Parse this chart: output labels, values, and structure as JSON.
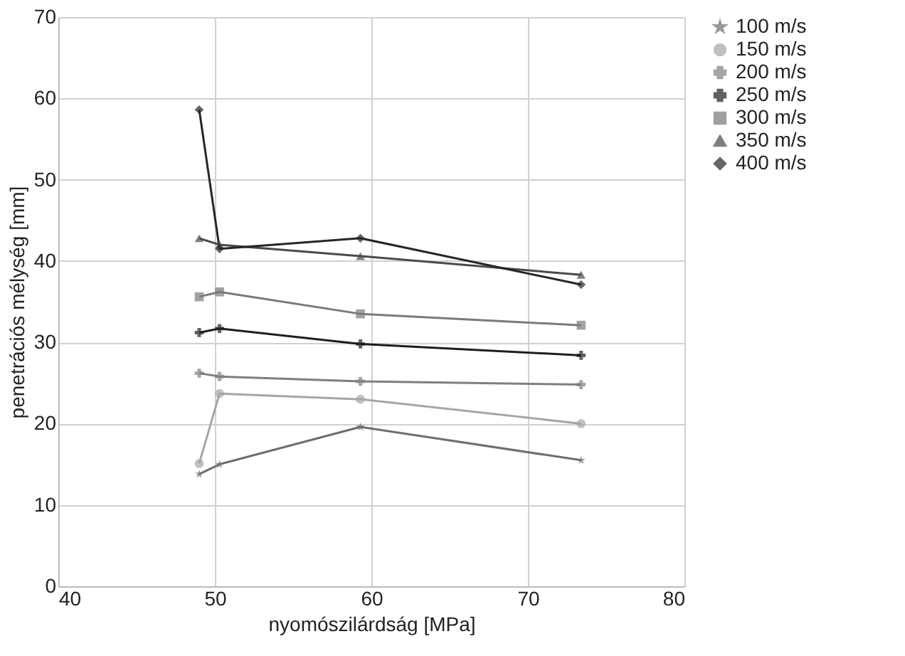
{
  "chart_data": {
    "type": "line",
    "xlabel": "nyomószilárdság [MPa]",
    "ylabel": "penetrációs mélység [mm]",
    "x": [
      49.0,
      50.3,
      59.3,
      73.4
    ],
    "series": [
      {
        "name": "100 m/s",
        "color": "#6e6e6e",
        "marker": "star",
        "values": [
          13.8,
          15.0,
          19.6,
          15.5
        ]
      },
      {
        "name": "150 m/s",
        "color": "#a6a6a6",
        "marker": "circle",
        "values": [
          15.1,
          23.7,
          23.0,
          20.0
        ]
      },
      {
        "name": "200 m/s",
        "color": "#7f7f7f",
        "marker": "cross",
        "values": [
          26.2,
          25.8,
          25.2,
          24.8
        ]
      },
      {
        "name": "250 m/s",
        "color": "#1e1e1e",
        "marker": "cross",
        "values": [
          31.2,
          31.7,
          29.8,
          28.4
        ]
      },
      {
        "name": "300 m/s",
        "color": "#7a7a7a",
        "marker": "square",
        "values": [
          35.6,
          36.2,
          33.5,
          32.1
        ]
      },
      {
        "name": "350 m/s",
        "color": "#4a4a4a",
        "marker": "triangle",
        "values": [
          42.8,
          42.0,
          40.6,
          38.3
        ]
      },
      {
        "name": "400 m/s",
        "color": "#262626",
        "marker": "diamond",
        "values": [
          58.6,
          41.5,
          42.8,
          37.1
        ]
      }
    ],
    "xlim": [
      40,
      80
    ],
    "xticks": [
      40,
      50,
      60,
      70,
      80
    ],
    "ylim": [
      0,
      70
    ],
    "yticks": [
      0,
      10,
      20,
      30,
      40,
      50,
      60,
      70
    ],
    "grid": true,
    "legend": "right",
    "line_style": "solid"
  }
}
